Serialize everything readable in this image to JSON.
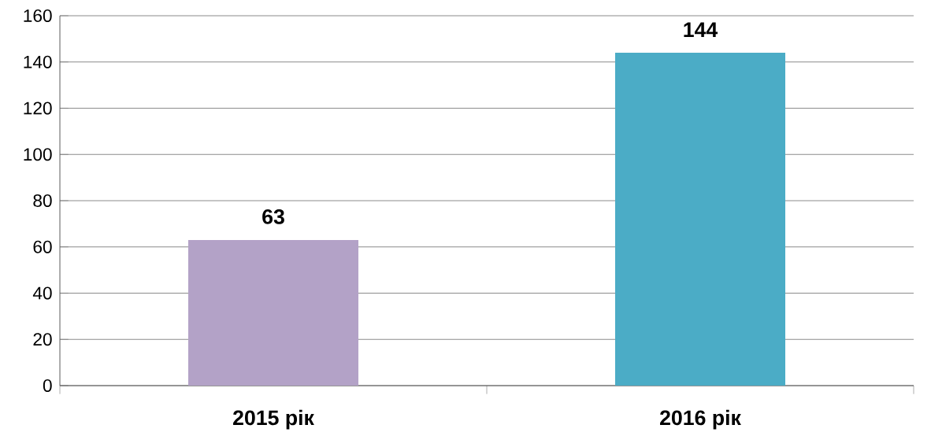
{
  "chart_data": {
    "type": "bar",
    "categories": [
      "2015 рік",
      "2016 рік"
    ],
    "values": [
      63,
      144
    ],
    "colors": [
      "#b3a2c7",
      "#4bacc6"
    ],
    "ylim": [
      0,
      160
    ],
    "yticks": [
      0,
      20,
      40,
      60,
      80,
      100,
      120,
      140,
      160
    ],
    "grid": "y",
    "data_labels": true
  }
}
